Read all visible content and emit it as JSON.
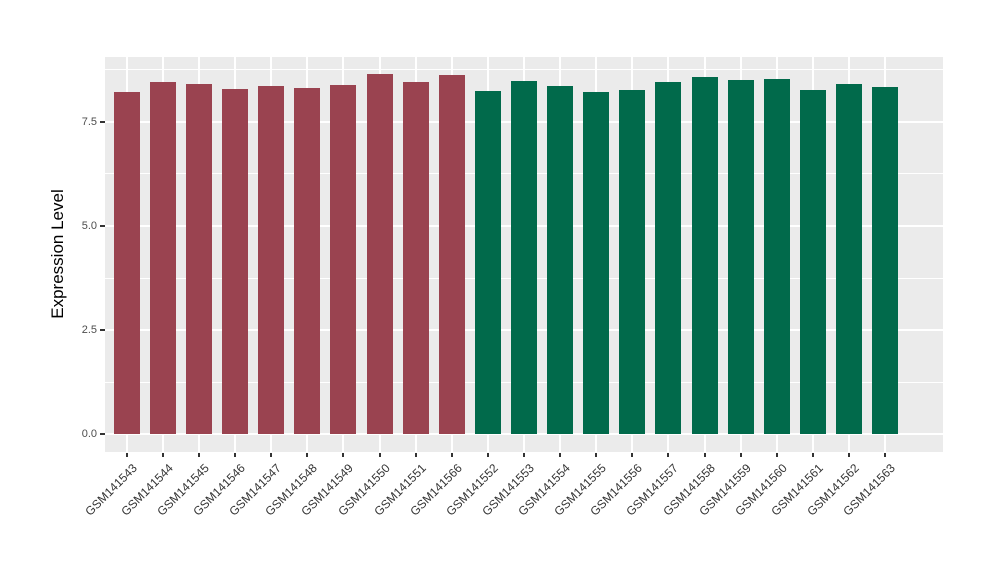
{
  "figure": {
    "kind": "ggplot-style grouped bar chart",
    "background_color": "#FFFFFF",
    "panel_background_color": "#EBEBEB",
    "gridline_color": "#FFFFFF",
    "axis_text_color": "#4D4D4D",
    "axis_title_color": "#000000"
  },
  "chart_data": {
    "type": "bar",
    "title": "",
    "xlabel": "",
    "ylabel": "Expression Level",
    "categories": [
      "GSM141543",
      "GSM141544",
      "GSM141545",
      "GSM141546",
      "GSM141547",
      "GSM141548",
      "GSM141549",
      "GSM141550",
      "GSM141551",
      "GSM141566",
      "GSM141552",
      "GSM141553",
      "GSM141554",
      "GSM141555",
      "GSM141556",
      "GSM141557",
      "GSM141558",
      "GSM141559",
      "GSM141560",
      "GSM141561",
      "GSM141562",
      "GSM141563"
    ],
    "values": [
      8.22,
      8.46,
      8.41,
      8.3,
      8.37,
      8.32,
      8.38,
      8.66,
      8.46,
      8.63,
      8.24,
      8.49,
      8.37,
      8.22,
      8.27,
      8.46,
      8.58,
      8.51,
      8.54,
      8.27,
      8.4,
      8.35
    ],
    "groups": [
      "red",
      "red",
      "red",
      "red",
      "red",
      "red",
      "red",
      "red",
      "red",
      "red",
      "green",
      "green",
      "green",
      "green",
      "green",
      "green",
      "green",
      "green",
      "green",
      "green",
      "green",
      "green"
    ],
    "group_colors": {
      "red": "#9A4350",
      "green": "#016A4B"
    },
    "yticks": [
      0.0,
      2.5,
      5.0,
      7.5
    ],
    "ytick_labels": [
      "0.0",
      "2.5",
      "5.0",
      "7.5"
    ],
    "yticks_minor": [
      1.25,
      3.75,
      6.25,
      8.75
    ],
    "ylim": [
      -0.43,
      9.06
    ],
    "grid": true,
    "legend": false,
    "x_tick_label_angle": 45
  }
}
